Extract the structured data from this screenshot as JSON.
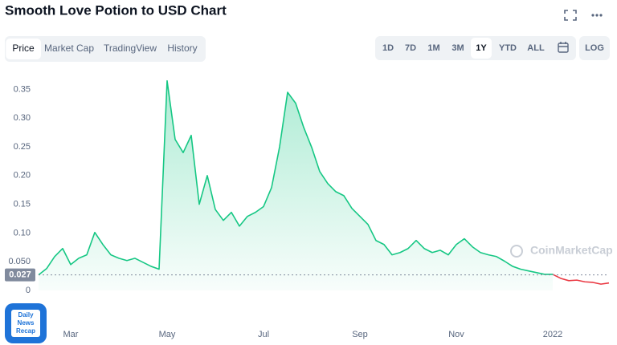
{
  "header": {
    "title": "Smooth Love Potion to USD Chart"
  },
  "tabs": {
    "items": [
      "Price",
      "Market Cap",
      "TradingView",
      "History"
    ],
    "selected": 0
  },
  "ranges": {
    "items": [
      "1D",
      "7D",
      "1M",
      "3M",
      "1Y",
      "YTD",
      "ALL"
    ],
    "selected": 4,
    "log": "LOG"
  },
  "watermark": "CoinMarketCap",
  "badge": [
    "Daily",
    "News",
    "Recap"
  ],
  "chart_data": {
    "type": "line",
    "categories": [
      null,
      null,
      null,
      null,
      "Mar",
      null,
      null,
      null,
      null,
      null,
      null,
      null,
      null,
      null,
      null,
      null,
      "May",
      null,
      null,
      null,
      null,
      null,
      null,
      null,
      null,
      null,
      null,
      null,
      "Jul",
      null,
      null,
      null,
      null,
      null,
      null,
      null,
      null,
      null,
      null,
      null,
      "Sep",
      null,
      null,
      null,
      null,
      null,
      null,
      null,
      null,
      null,
      null,
      null,
      "Nov",
      null,
      null,
      null,
      null,
      null,
      null,
      null,
      null,
      null,
      null,
      null,
      "2022",
      null,
      null,
      null,
      null,
      null,
      null,
      null
    ],
    "series": [
      {
        "color": "#16c784",
        "values": [
          0.027,
          0.038,
          0.059,
          0.073,
          0.045,
          0.056,
          0.062,
          0.101,
          0.08,
          0.062,
          0.056,
          0.052,
          0.056,
          0.049,
          0.042,
          0.037,
          0.365,
          0.263,
          0.24,
          0.27,
          0.15,
          0.2,
          0.141,
          0.122,
          0.136,
          0.112,
          0.129,
          0.136,
          0.146,
          0.179,
          0.25,
          0.345,
          0.326,
          0.284,
          0.249,
          0.207,
          0.186,
          0.172,
          0.165,
          0.143,
          0.129,
          0.115,
          0.087,
          0.08,
          0.062,
          0.066,
          0.073,
          0.087,
          0.073,
          0.066,
          0.07,
          0.062,
          0.08,
          0.09,
          0.076,
          0.066,
          0.062,
          0.059,
          0.051,
          0.042,
          0.037,
          0.034,
          0.031,
          0.028,
          0.028,
          null,
          null,
          null,
          null,
          null,
          null,
          null
        ]
      },
      {
        "color": "#ea3943",
        "values": [
          null,
          null,
          null,
          null,
          null,
          null,
          null,
          null,
          null,
          null,
          null,
          null,
          null,
          null,
          null,
          null,
          null,
          null,
          null,
          null,
          null,
          null,
          null,
          null,
          null,
          null,
          null,
          null,
          null,
          null,
          null,
          null,
          null,
          null,
          null,
          null,
          null,
          null,
          null,
          null,
          null,
          null,
          null,
          null,
          null,
          null,
          null,
          null,
          null,
          null,
          null,
          null,
          null,
          null,
          null,
          null,
          null,
          null,
          null,
          null,
          null,
          null,
          null,
          null,
          0.028,
          0.021,
          0.017,
          0.018,
          0.015,
          0.014,
          0.011,
          0.013
        ]
      }
    ],
    "current_price": 0.027,
    "ylim": [
      0,
      0.38
    ],
    "yticks": [
      0,
      {
        "value": 0.05,
        "label": "0.050"
      },
      {
        "value": 0.1,
        "label": "0.10"
      },
      0.15,
      {
        "value": 0.2,
        "label": "0.20"
      },
      0.25,
      {
        "value": 0.3,
        "label": "0.30"
      },
      0.35
    ],
    "grid": false
  }
}
